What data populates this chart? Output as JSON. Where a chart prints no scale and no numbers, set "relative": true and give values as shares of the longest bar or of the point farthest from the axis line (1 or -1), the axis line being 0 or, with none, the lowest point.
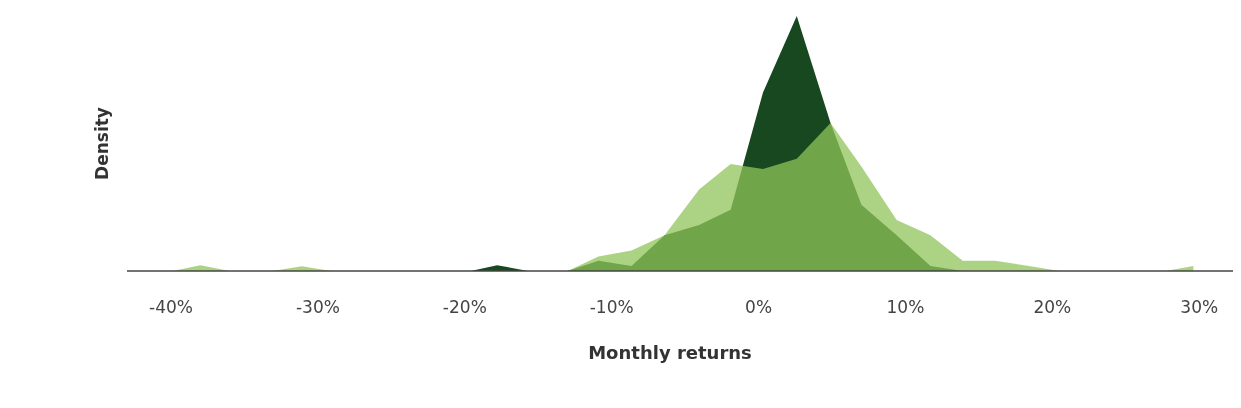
{
  "chart_data": {
    "type": "area",
    "relative": true,
    "xlabel": "Monthly returns",
    "ylabel": "Density",
    "xlim": [
      -43,
      32.3
    ],
    "xticks": [
      {
        "value": -40,
        "label": "-40%"
      },
      {
        "value": -30,
        "label": "-30%"
      },
      {
        "value": -20,
        "label": "-20%"
      },
      {
        "value": -10,
        "label": "-10%"
      },
      {
        "value": 0,
        "label": "0%"
      },
      {
        "value": 10,
        "label": "10%"
      },
      {
        "value": 20,
        "label": "20%"
      },
      {
        "value": 30,
        "label": "30%"
      }
    ],
    "grid": false,
    "series": [
      {
        "color": "#17481f",
        "x": [
          -19.6,
          -17.8,
          -15.7,
          -13.0,
          -10.9,
          -8.65,
          -6.4,
          -4.05,
          -1.9,
          0.3,
          2.6,
          4.9,
          7.0,
          9.4,
          11.7,
          13.9
        ],
        "values": [
          0,
          0.023,
          0,
          0,
          0.04,
          0.02,
          0.14,
          0.18,
          0.24,
          0.7,
          1,
          0.58,
          0.26,
          0.14,
          0.02,
          0
        ]
      },
      {
        "color": "#8fc45a",
        "x": [
          -39.9,
          -38.0,
          -36.0,
          -33.1,
          -31.1,
          -29.1,
          -13.0,
          -10.9,
          -8.65,
          -6.4,
          -4.05,
          -1.9,
          0.3,
          2.6,
          4.9,
          7.0,
          9.4,
          11.7,
          13.9,
          16.1,
          18.4,
          20.5,
          27.7,
          29.6
        ],
        "values": [
          0,
          0.023,
          0,
          0,
          0.019,
          0,
          0,
          0.057,
          0.08,
          0.14,
          0.32,
          0.42,
          0.4,
          0.44,
          0.58,
          0.41,
          0.2,
          0.14,
          0.04,
          0.04,
          0.02,
          0,
          0,
          0.02
        ]
      }
    ]
  }
}
